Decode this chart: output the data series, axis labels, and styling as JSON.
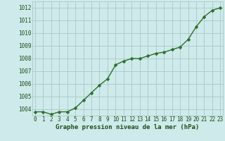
{
  "x": [
    0,
    1,
    2,
    3,
    4,
    5,
    6,
    7,
    8,
    9,
    10,
    11,
    12,
    13,
    14,
    15,
    16,
    17,
    18,
    19,
    20,
    21,
    22,
    23
  ],
  "y": [
    1003.8,
    1003.8,
    1003.6,
    1003.8,
    1003.8,
    1004.1,
    1004.7,
    1005.3,
    1005.9,
    1006.4,
    1007.5,
    1007.8,
    1008.0,
    1008.0,
    1008.2,
    1008.4,
    1008.5,
    1008.7,
    1008.9,
    1009.5,
    1010.5,
    1011.3,
    1011.8,
    1012.0
  ],
  "line_color": "#2d6e2d",
  "marker": "D",
  "marker_size": 2.5,
  "line_width": 1.0,
  "bg_color": "#ceeaea",
  "grid_color": "#aac8c8",
  "xlabel": "Graphe pression niveau de la mer (hPa)",
  "xlabel_color": "#1a4f1a",
  "xlabel_fontsize": 6.5,
  "tick_color": "#1a4f1a",
  "tick_fontsize": 5.5,
  "ylim": [
    1003.5,
    1012.5
  ],
  "yticks": [
    1004,
    1005,
    1006,
    1007,
    1008,
    1009,
    1010,
    1011,
    1012
  ],
  "xlim": [
    -0.3,
    23.3
  ],
  "xticks": [
    0,
    1,
    2,
    3,
    4,
    5,
    6,
    7,
    8,
    9,
    10,
    11,
    12,
    13,
    14,
    15,
    16,
    17,
    18,
    19,
    20,
    21,
    22,
    23
  ]
}
